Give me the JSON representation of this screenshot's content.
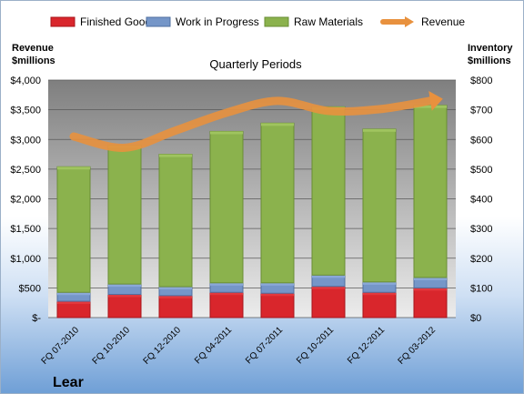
{
  "chart_data": {
    "type": "bar",
    "subtype": "stacked-bar-with-line",
    "title": "Quarterly Periods",
    "company": "Lear",
    "left_axis_title": [
      "Revenue",
      "$millions"
    ],
    "right_axis_title": [
      "Inventory",
      "$millions"
    ],
    "categories": [
      "FQ 07-2010",
      "FQ 10-2010",
      "FQ 12-2010",
      "FQ 04-2011",
      "FQ 07-2011",
      "FQ 10-2011",
      "FQ 12-2011",
      "FQ 03-2012"
    ],
    "series": [
      {
        "name": "Finished Goods",
        "axis": "right",
        "color": "#d9262c",
        "values": [
          55,
          78,
          74,
          85,
          82,
          105,
          85,
          100
        ]
      },
      {
        "name": "Work in Progress",
        "axis": "right",
        "color": "#7596c8",
        "values": [
          30,
          35,
          30,
          32,
          35,
          38,
          35,
          35
        ]
      },
      {
        "name": "Raw Materials",
        "axis": "right",
        "color": "#8bb24d",
        "values": [
          423,
          467,
          446,
          510,
          538,
          567,
          515,
          580
        ]
      },
      {
        "name": "Revenue",
        "axis": "left",
        "type": "line",
        "color": "#e8913e",
        "values": [
          3050,
          2860,
          3150,
          3450,
          3650,
          3480,
          3510,
          3650
        ]
      }
    ],
    "left_axis": {
      "min": 0,
      "max": 4000,
      "step": 500,
      "tick_labels": [
        "$-",
        "$500",
        "$1,000",
        "$1,500",
        "$2,000",
        "$2,500",
        "$3,000",
        "$3,500",
        "$4,000"
      ]
    },
    "right_axis": {
      "min": 0,
      "max": 800,
      "step": 100,
      "tick_labels": [
        "$0",
        "$100",
        "$200",
        "$300",
        "$400",
        "$500",
        "$600",
        "$700",
        "$800"
      ]
    },
    "legend_position": "top",
    "grid": true
  }
}
